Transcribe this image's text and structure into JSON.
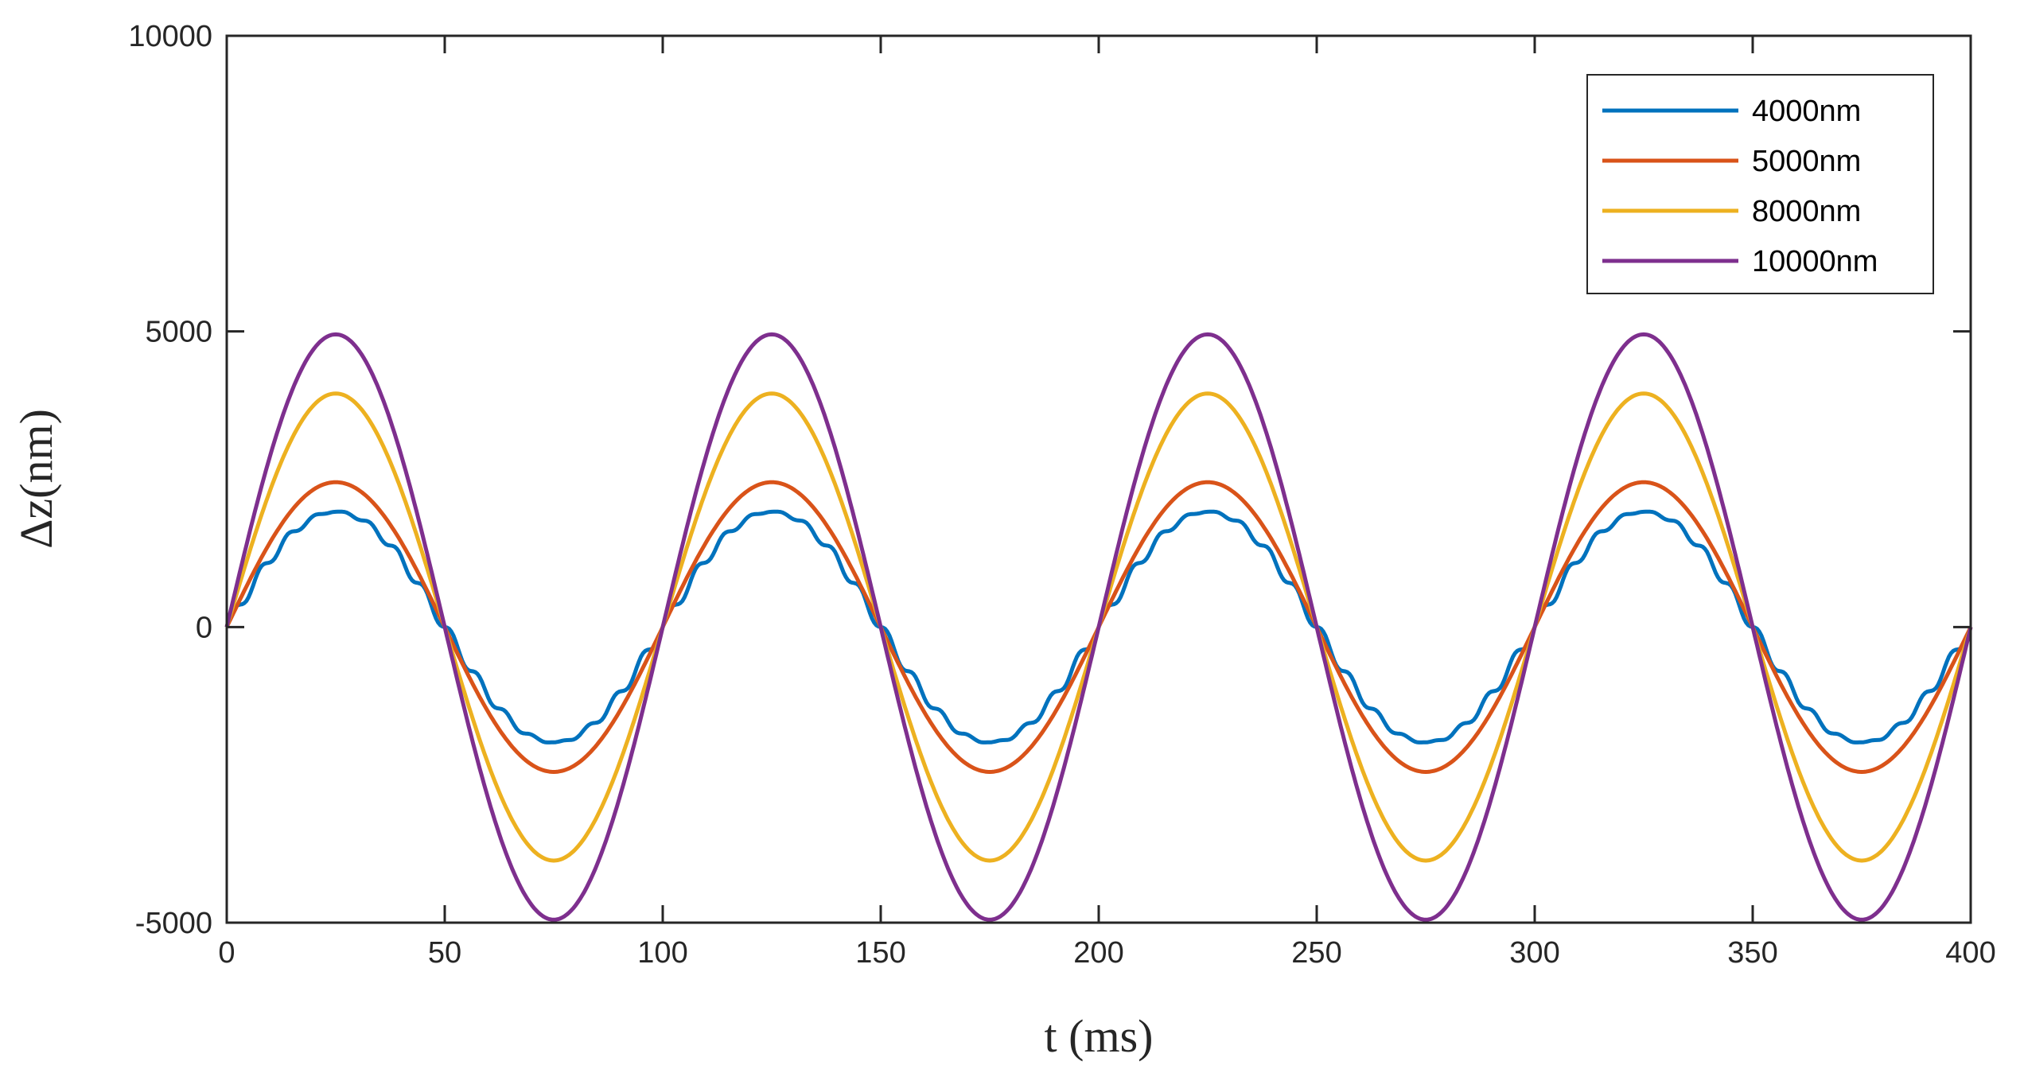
{
  "chart_data": {
    "type": "line",
    "title": "",
    "xlabel": "t (ms)",
    "ylabel": "Δz(nm)",
    "xlim": [
      0,
      400
    ],
    "ylim": [
      -5000,
      10000
    ],
    "xticks": [
      0,
      50,
      100,
      150,
      200,
      250,
      300,
      350,
      400
    ],
    "yticks": [
      -5000,
      0,
      5000,
      10000
    ],
    "xtick_labels": [
      "0",
      "50",
      "100",
      "150",
      "200",
      "250",
      "300",
      "350",
      "400"
    ],
    "ytick_labels": [
      "-5000",
      "0",
      "5000",
      "10000"
    ],
    "grid": false,
    "legend_position": "top-right",
    "period_ms": 100,
    "series": [
      {
        "name": "4000nm",
        "color": "#0072BD",
        "amplitude": 1950,
        "ripple": true
      },
      {
        "name": "5000nm",
        "color": "#D95319",
        "amplitude": 2450,
        "ripple": false
      },
      {
        "name": "8000nm",
        "color": "#EDB120",
        "amplitude": 3950,
        "ripple": false
      },
      {
        "name": "10000nm",
        "color": "#7E2F8E",
        "amplitude": 4950,
        "ripple": false
      }
    ]
  }
}
